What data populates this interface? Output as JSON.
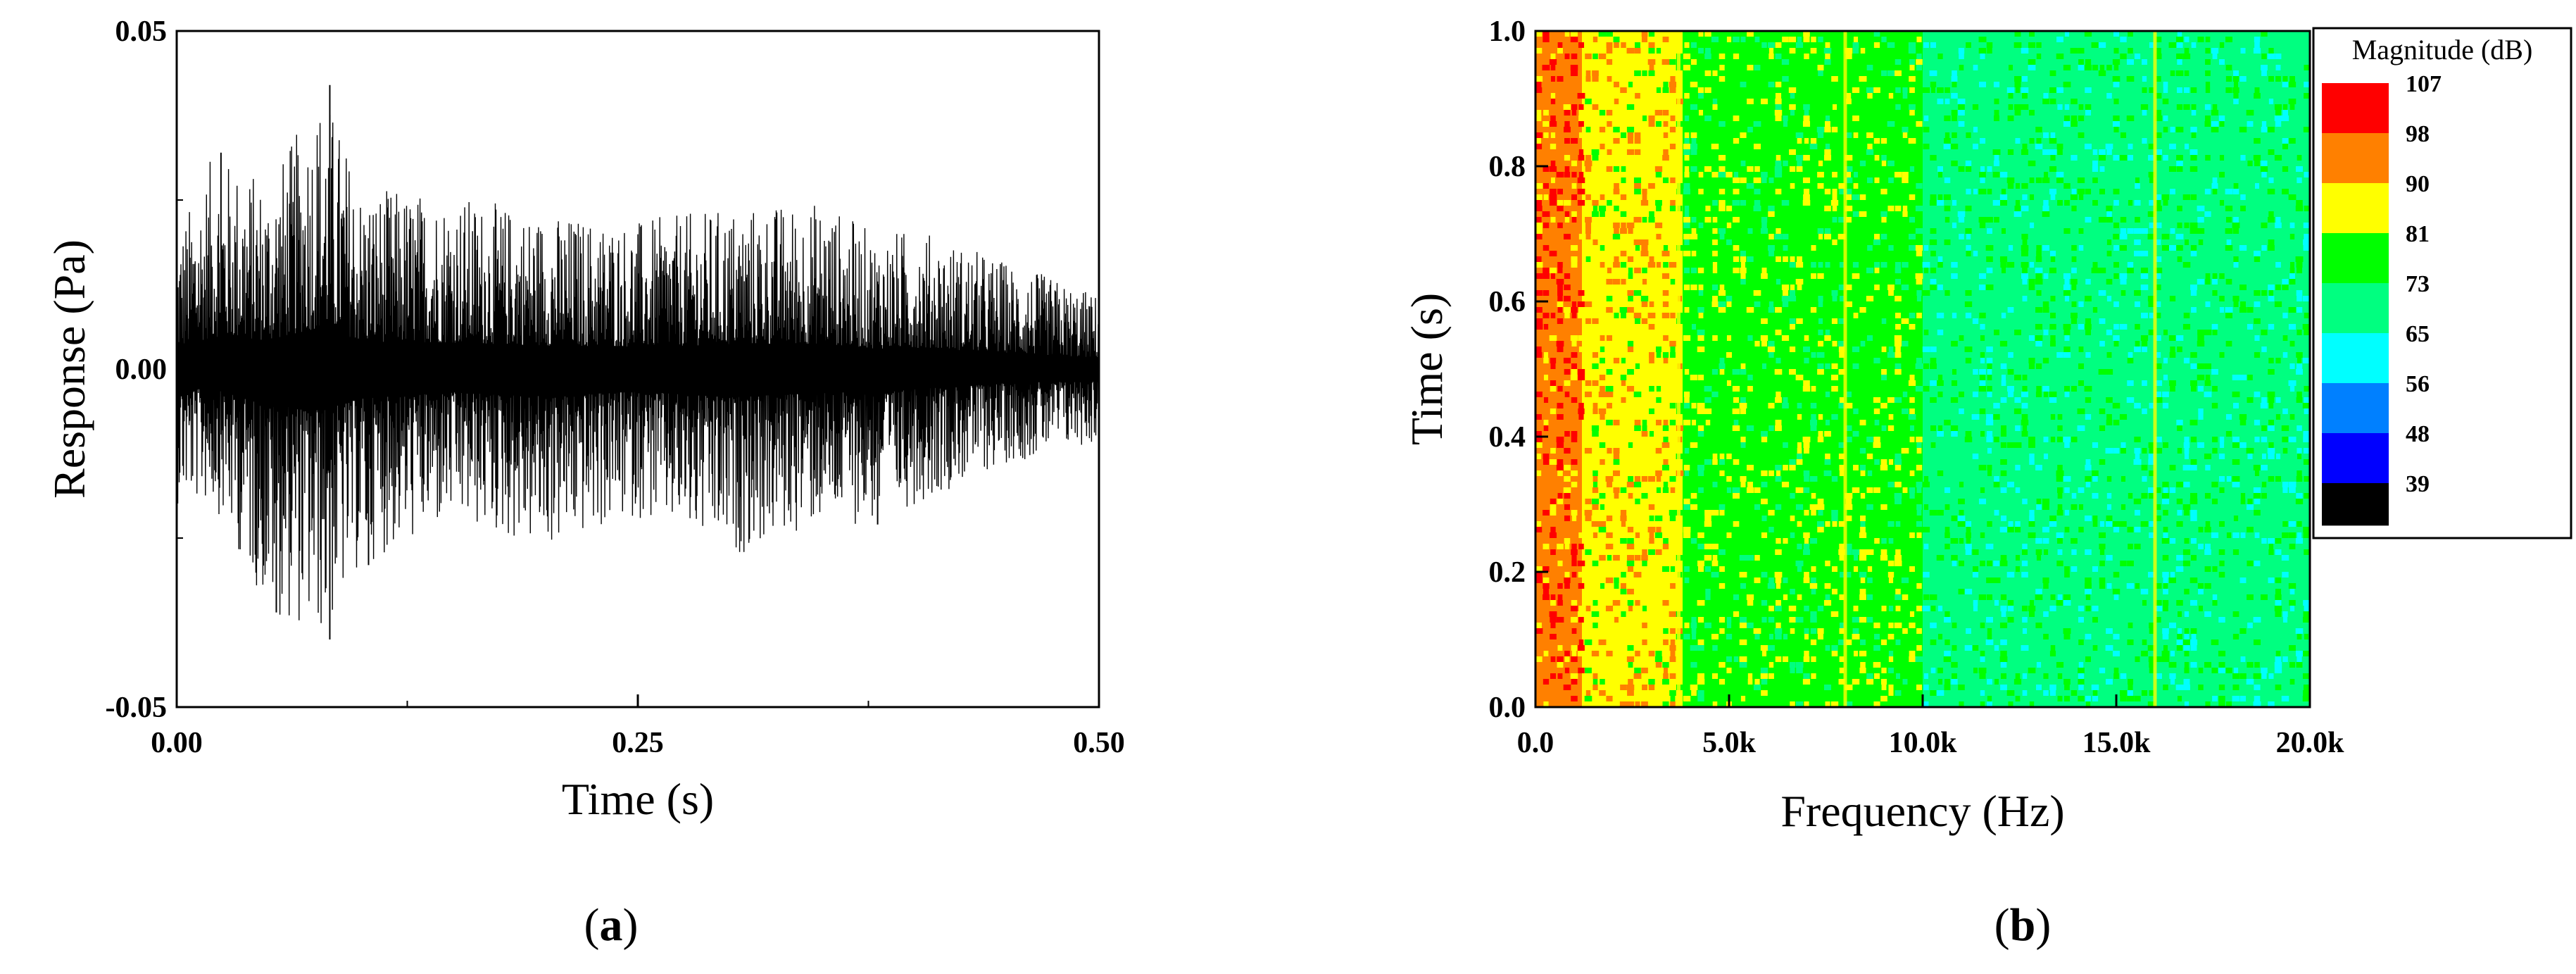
{
  "chart_data": [
    {
      "type": "line",
      "panel_label": "a",
      "title": "",
      "xlabel": "Time (s)",
      "ylabel": "Response (Pa)",
      "xlim": [
        0,
        0.5
      ],
      "ylim": [
        -0.05,
        0.05
      ],
      "xticks": [
        "0.00",
        "0.25",
        "0.50"
      ],
      "yticks": [
        "-0.05",
        "0.00",
        "0.05"
      ],
      "grid": false,
      "series": [
        {
          "x": [
            0.0,
            0.02,
            0.05,
            0.08,
            0.1,
            0.15,
            0.2,
            0.25,
            0.3,
            0.35,
            0.38,
            0.4,
            0.45,
            0.5
          ],
          "envelope_max": [
            0.02,
            0.032,
            0.028,
            0.042,
            0.027,
            0.026,
            0.023,
            0.022,
            0.024,
            0.025,
            0.02,
            0.021,
            0.016,
            0.011
          ],
          "envelope_min": [
            -0.02,
            -0.02,
            -0.036,
            -0.04,
            -0.029,
            -0.023,
            -0.027,
            -0.022,
            -0.028,
            -0.023,
            -0.023,
            -0.02,
            -0.014,
            -0.011
          ],
          "peaks": [
            {
              "x": 0.024,
              "y": 0.032
            },
            {
              "x": 0.054,
              "y": -0.036
            },
            {
              "x": 0.083,
              "y": 0.042
            },
            {
              "x": 0.083,
              "y": -0.04
            },
            {
              "x": 0.104,
              "y": -0.029
            },
            {
              "x": 0.38,
              "y": -0.023
            }
          ]
        }
      ]
    },
    {
      "type": "heatmap",
      "panel_label": "b",
      "title": "",
      "xlabel": "Frequency (Hz)",
      "ylabel": "Time (s)",
      "xlim": [
        0,
        20000
      ],
      "ylim": [
        0,
        1
      ],
      "xticks": [
        "0.0",
        "5.0k",
        "10.0k",
        "15.0k",
        "20.0k"
      ],
      "yticks": [
        "0.0",
        "0.2",
        "0.4",
        "0.6",
        "0.8",
        "1.0"
      ],
      "colorbar": {
        "title": "Magnitude (dB)",
        "labels": [
          "107",
          "98",
          "90",
          "81",
          "73",
          "65",
          "56",
          "48",
          "39"
        ],
        "colors": [
          "#ff0000",
          "#ff8000",
          "#ffff00",
          "#00ff00",
          "#00ff80",
          "#00ffff",
          "#0080ff",
          "#0000ff",
          "#000000"
        ]
      },
      "bands": [
        {
          "f_from": 0,
          "f_to": 1200,
          "level_db": 98,
          "hot_core_db": 107
        },
        {
          "f_from": 1200,
          "f_to": 3800,
          "level_db": 90
        },
        {
          "f_from": 3800,
          "f_to": 10000,
          "level_db": 81
        },
        {
          "f_from": 10000,
          "f_to": 20000,
          "level_db": 73
        }
      ],
      "tonal_lines_hz": [
        3700,
        8000,
        16000
      ]
    }
  ],
  "captions": {
    "a": "a",
    "b": "b"
  }
}
